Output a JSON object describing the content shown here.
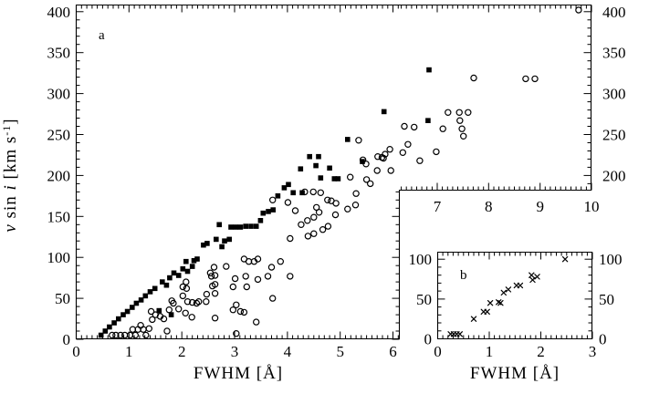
{
  "figure": {
    "background": "#ffffff",
    "ink": "#000000"
  },
  "chart_data": [
    {
      "panel": "a",
      "type": "scatter",
      "panel_label": "a",
      "xlabel": "FWHM [Å]",
      "ylabel": "v sin i [km s⁻¹]",
      "ylabel_parts": {
        "var1": "v",
        "mid": " sin ",
        "var2": "i",
        "unit_open": " [km s",
        "sup": "-1",
        "unit_close": "]"
      },
      "xlim_main": [
        0,
        6.12
      ],
      "xlim_extension": [
        6.26,
        10
      ],
      "ylim": [
        0,
        409
      ],
      "ylim_extension": [
        181,
        409
      ],
      "x_major_ticks_main": [
        0,
        1,
        2,
        3,
        4,
        5,
        6
      ],
      "x_major_ticks_extension": [
        7,
        8,
        9,
        10
      ],
      "y_major_ticks": [
        0,
        50,
        100,
        150,
        200,
        250,
        300,
        350,
        400
      ],
      "y_labels_right_extension": [
        200,
        250,
        300,
        350,
        400
      ],
      "x_minor_step": 0.1,
      "y_minor_step": 10,
      "grid": false,
      "legend": "none",
      "series": [
        {
          "name": "filled squares",
          "marker": "filled-square",
          "points": [
            [
              0.47,
              5
            ],
            [
              0.55,
              10
            ],
            [
              0.63,
              15
            ],
            [
              0.72,
              20
            ],
            [
              0.8,
              25
            ],
            [
              0.89,
              30
            ],
            [
              0.97,
              34
            ],
            [
              1.06,
              39
            ],
            [
              1.14,
              44
            ],
            [
              1.23,
              48
            ],
            [
              1.31,
              53
            ],
            [
              1.4,
              58
            ],
            [
              1.49,
              62
            ],
            [
              1.57,
              35
            ],
            [
              1.8,
              30
            ],
            [
              1.63,
              70
            ],
            [
              1.71,
              66
            ],
            [
              1.77,
              75
            ],
            [
              1.85,
              81
            ],
            [
              1.94,
              78
            ],
            [
              2.02,
              86
            ],
            [
              2.08,
              95
            ],
            [
              2.11,
              83
            ],
            [
              2.2,
              89
            ],
            [
              2.23,
              96
            ],
            [
              2.29,
              98
            ],
            [
              2.41,
              115
            ],
            [
              2.48,
              117
            ],
            [
              2.65,
              122
            ],
            [
              2.71,
              140
            ],
            [
              2.76,
              113
            ],
            [
              2.81,
              120
            ],
            [
              2.9,
              122
            ],
            [
              2.93,
              137
            ],
            [
              3.02,
              137
            ],
            [
              3.11,
              137
            ],
            [
              3.21,
              138
            ],
            [
              3.31,
              138
            ],
            [
              3.41,
              138
            ],
            [
              3.49,
              145
            ],
            [
              3.54,
              154
            ],
            [
              3.64,
              156
            ],
            [
              3.73,
              158
            ],
            [
              3.82,
              175
            ],
            [
              3.94,
              185
            ],
            [
              4.02,
              189
            ],
            [
              4.11,
              179
            ],
            [
              4.28,
              179
            ],
            [
              4.25,
              208
            ],
            [
              4.42,
              223
            ],
            [
              4.59,
              223
            ],
            [
              4.54,
              212
            ],
            [
              4.63,
              197
            ],
            [
              4.8,
              209
            ],
            [
              4.89,
              196
            ],
            [
              4.96,
              196
            ],
            [
              5.14,
              244
            ],
            [
              5.42,
              217
            ],
            [
              5.83,
              278
            ],
            [
              6.84,
              329
            ],
            [
              6.82,
              267
            ]
          ]
        },
        {
          "name": "open circles",
          "marker": "open-circle",
          "points": [
            [
              0.68,
              5
            ],
            [
              0.75,
              5
            ],
            [
              0.84,
              5
            ],
            [
              0.92,
              5
            ],
            [
              1.02,
              5
            ],
            [
              1.07,
              12
            ],
            [
              1.12,
              5
            ],
            [
              1.17,
              12
            ],
            [
              1.22,
              17
            ],
            [
              1.27,
              12
            ],
            [
              1.32,
              5
            ],
            [
              1.38,
              13
            ],
            [
              1.44,
              24
            ],
            [
              1.42,
              34
            ],
            [
              1.5,
              30
            ],
            [
              1.59,
              28
            ],
            [
              1.66,
              25
            ],
            [
              1.72,
              10
            ],
            [
              1.76,
              36
            ],
            [
              1.81,
              47
            ],
            [
              1.84,
              44
            ],
            [
              1.94,
              37
            ],
            [
              2.07,
              32
            ],
            [
              2.19,
              27
            ],
            [
              3.03,
              7
            ],
            [
              2.02,
              53
            ],
            [
              2.02,
              64
            ],
            [
              2.08,
              70
            ],
            [
              2.09,
              62
            ],
            [
              2.11,
              46
            ],
            [
              2.2,
              45
            ],
            [
              2.28,
              44
            ],
            [
              2.32,
              46
            ],
            [
              2.46,
              46
            ],
            [
              2.47,
              55
            ],
            [
              2.54,
              81
            ],
            [
              2.56,
              77
            ],
            [
              2.58,
              65
            ],
            [
              2.61,
              88
            ],
            [
              2.63,
              78
            ],
            [
              2.63,
              67
            ],
            [
              2.63,
              56
            ],
            [
              2.63,
              26
            ],
            [
              2.84,
              89
            ],
            [
              2.97,
              64
            ],
            [
              2.97,
              36
            ],
            [
              3.01,
              74
            ],
            [
              3.03,
              42
            ],
            [
              3.11,
              34
            ],
            [
              3.18,
              33
            ],
            [
              3.23,
              64
            ],
            [
              3.41,
              21
            ],
            [
              3.44,
              73
            ],
            [
              3.72,
              50
            ],
            [
              3.18,
              98
            ],
            [
              3.21,
              77
            ],
            [
              3.27,
              95
            ],
            [
              3.37,
              95
            ],
            [
              3.44,
              98
            ],
            [
              3.63,
              77
            ],
            [
              3.7,
              88
            ],
            [
              3.87,
              95
            ],
            [
              4.05,
              77
            ],
            [
              4.05,
              123
            ],
            [
              4.26,
              140
            ],
            [
              4.38,
              145
            ],
            [
              4.39,
              126
            ],
            [
              4.5,
              129
            ],
            [
              4.5,
              149
            ],
            [
              4.6,
              155
            ],
            [
              4.67,
              134
            ],
            [
              4.77,
              138
            ],
            [
              4.91,
              152
            ],
            [
              5.14,
              159
            ],
            [
              5.29,
              164
            ],
            [
              3.72,
              170
            ],
            [
              4.01,
              167
            ],
            [
              4.15,
              157
            ],
            [
              4.33,
              180
            ],
            [
              4.49,
              180
            ],
            [
              4.63,
              179
            ],
            [
              4.76,
              170
            ],
            [
              4.83,
              169
            ],
            [
              4.92,
              166
            ],
            [
              4.55,
              161
            ],
            [
              5.19,
              198
            ],
            [
              5.3,
              178
            ],
            [
              5.35,
              243
            ],
            [
              5.43,
              219
            ],
            [
              5.49,
              214
            ],
            [
              5.5,
              195
            ],
            [
              5.57,
              190
            ],
            [
              5.71,
              223
            ],
            [
              5.79,
              222
            ],
            [
              5.85,
              226
            ],
            [
              5.7,
              206
            ],
            [
              5.94,
              232
            ],
            [
              5.96,
              206
            ],
            [
              5.82,
              221
            ],
            [
              6.33,
              228
            ],
            [
              6.36,
              260
            ],
            [
              6.43,
              238
            ],
            [
              6.55,
              259
            ],
            [
              6.66,
              218
            ],
            [
              6.98,
              229
            ],
            [
              7.11,
              257
            ],
            [
              7.21,
              277
            ],
            [
              7.43,
              277
            ],
            [
              7.6,
              277
            ],
            [
              7.44,
              267
            ],
            [
              7.48,
              257
            ],
            [
              7.51,
              248
            ],
            [
              7.71,
              319
            ],
            [
              8.72,
              318
            ],
            [
              8.9,
              318
            ],
            [
              9.75,
              402
            ]
          ]
        }
      ]
    },
    {
      "panel": "b",
      "type": "scatter",
      "panel_label": "b",
      "xlabel": "FWHM [Å]",
      "ylabel": "",
      "xlim": [
        0,
        3
      ],
      "ylim": [
        0,
        109
      ],
      "x_major_ticks": [
        0,
        1,
        2,
        3
      ],
      "y_major_ticks": [
        0,
        50,
        100
      ],
      "x_minor_step": 0.1,
      "y_minor_step": 10,
      "grid": false,
      "legend": "none",
      "series": [
        {
          "name": "crosses",
          "marker": "cross",
          "points": [
            [
              0.25,
              6
            ],
            [
              0.31,
              6
            ],
            [
              0.37,
              6
            ],
            [
              0.43,
              6
            ],
            [
              0.7,
              25
            ],
            [
              0.89,
              34
            ],
            [
              0.96,
              34
            ],
            [
              1.02,
              45
            ],
            [
              1.18,
              46
            ],
            [
              1.22,
              45
            ],
            [
              1.28,
              58
            ],
            [
              1.37,
              62
            ],
            [
              1.53,
              67
            ],
            [
              1.6,
              67
            ],
            [
              1.82,
              80
            ],
            [
              1.84,
              74
            ],
            [
              1.93,
              78
            ],
            [
              2.47,
              100
            ]
          ]
        }
      ]
    }
  ]
}
